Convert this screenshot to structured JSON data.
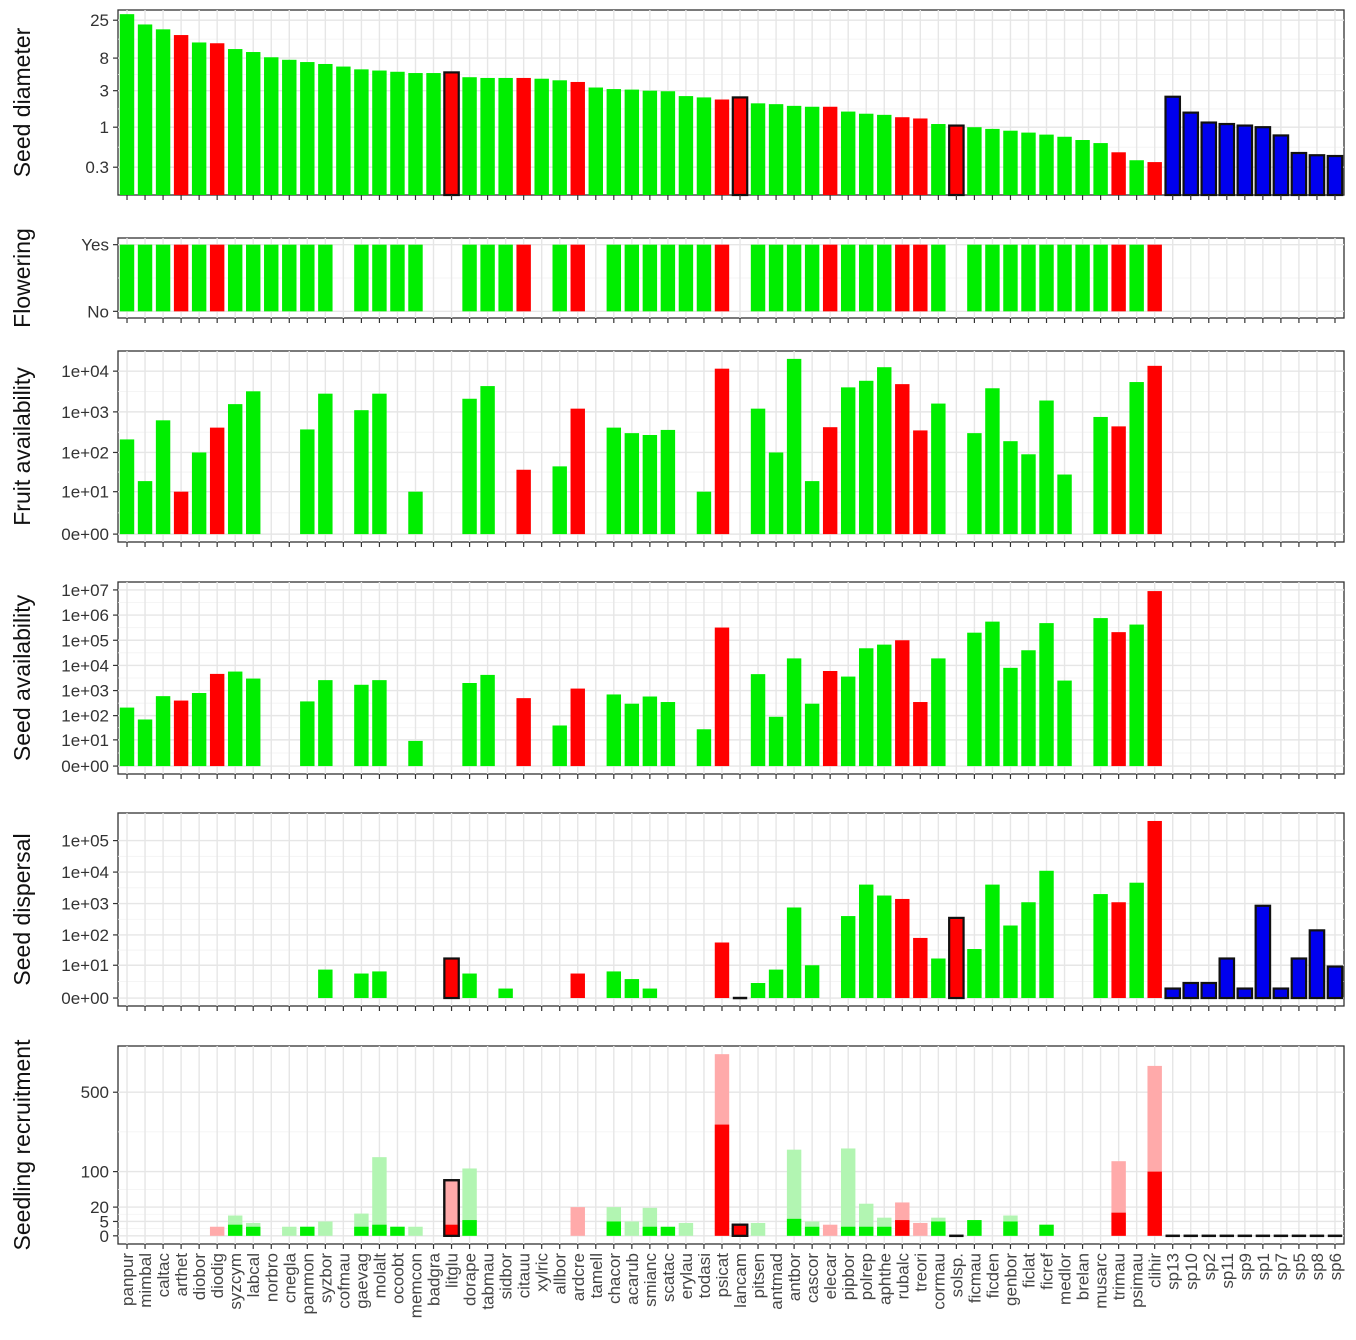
{
  "colors": {
    "green": "#00ee00",
    "red": "#ff0000",
    "blue": "#0000ee",
    "light_green": "#b2f5b2",
    "light_red": "#ffaaaa"
  },
  "chart_data": {
    "type": "bar",
    "species": [
      "panpur",
      "mimbal",
      "caltac",
      "arthet",
      "diobor",
      "diodig",
      "syzcym",
      "labcal",
      "norbro",
      "cnegla",
      "panmon",
      "syzbor",
      "cofmau",
      "gaevag",
      "molalt",
      "ocoobt",
      "memcon",
      "badgra",
      "litglu",
      "dorape",
      "tabmau",
      "sidbor",
      "citauu",
      "xylric",
      "allbor",
      "ardcre",
      "tamell",
      "chacor",
      "acarub",
      "smianc",
      "scatac",
      "erylau",
      "todasi",
      "psicat",
      "lancam",
      "pitsen",
      "antmad",
      "antbor",
      "cascor",
      "elecar",
      "pipbor",
      "polrep",
      "aphthe",
      "rubalc",
      "treori",
      "cormau",
      "solsp.",
      "ficmau",
      "ficden",
      "genbor",
      "ficlat",
      "ficref",
      "medlor",
      "brelan",
      "musarc",
      "trimau",
      "psimau",
      "clihir",
      "sp13",
      "sp10",
      "sp2",
      "sp11",
      "sp9",
      "sp1",
      "sp7",
      "sp5",
      "sp8",
      "sp6"
    ],
    "status": [
      "n",
      "n",
      "n",
      "e",
      "n",
      "e",
      "n",
      "n",
      "n",
      "n",
      "n",
      "n",
      "n",
      "n",
      "n",
      "n",
      "n",
      "n",
      "e",
      "n",
      "n",
      "n",
      "e",
      "n",
      "n",
      "e",
      "n",
      "n",
      "n",
      "n",
      "n",
      "n",
      "n",
      "e",
      "e",
      "n",
      "n",
      "n",
      "n",
      "e",
      "n",
      "n",
      "n",
      "e",
      "e",
      "n",
      "e",
      "n",
      "n",
      "n",
      "n",
      "n",
      "n",
      "n",
      "n",
      "e",
      "n",
      "e",
      "u",
      "u",
      "u",
      "u",
      "u",
      "u",
      "u",
      "u",
      "u",
      "u"
    ],
    "highlighted": [
      "litglu",
      "lancam",
      "solsp."
    ],
    "panels": [
      {
        "ylabel": "Seed diameter",
        "scale": "log",
        "ticks": [
          {
            "v": 0.3,
            "label": "0.3"
          },
          {
            "v": 1,
            "label": "1"
          },
          {
            "v": 3,
            "label": "3"
          },
          {
            "v": 8,
            "label": "8"
          },
          {
            "v": 25,
            "label": "25"
          }
        ],
        "values": [
          30,
          22,
          19,
          16,
          12.8,
          12.5,
          10.5,
          9.6,
          8.2,
          7.6,
          7.1,
          6.7,
          6.2,
          5.7,
          5.5,
          5.3,
          5.1,
          5.1,
          5.2,
          4.5,
          4.4,
          4.4,
          4.4,
          4.3,
          4.1,
          3.9,
          3.3,
          3.15,
          3.1,
          3.0,
          2.95,
          2.55,
          2.45,
          2.3,
          2.45,
          2.05,
          2.0,
          1.9,
          1.85,
          1.85,
          1.6,
          1.5,
          1.45,
          1.35,
          1.3,
          1.1,
          1.05,
          1.0,
          0.95,
          0.9,
          0.85,
          0.8,
          0.75,
          0.68,
          0.62,
          0.47,
          0.37,
          0.35,
          2.5,
          1.55,
          1.15,
          1.1,
          1.05,
          1.0,
          0.78,
          0.46,
          0.43,
          0.42
        ]
      },
      {
        "ylabel": "Flowering",
        "scale": "categorical",
        "ticks": [
          {
            "v": 0,
            "label": "No"
          },
          {
            "v": 1,
            "label": "Yes"
          }
        ],
        "values": [
          1,
          1,
          1,
          1,
          1,
          1,
          1,
          1,
          1,
          1,
          1,
          1,
          0,
          1,
          1,
          1,
          1,
          0,
          0,
          1,
          1,
          1,
          1,
          0,
          1,
          1,
          0,
          1,
          1,
          1,
          1,
          1,
          1,
          1,
          0,
          1,
          1,
          1,
          1,
          1,
          1,
          1,
          1,
          1,
          1,
          1,
          0,
          1,
          1,
          1,
          1,
          1,
          1,
          1,
          1,
          1,
          1,
          1,
          0,
          0,
          0,
          0,
          0,
          0,
          0,
          0,
          0,
          0
        ]
      },
      {
        "ylabel": "Fruit availability",
        "scale": "log1p",
        "ticks": [
          {
            "v": 0,
            "label": "0e+00"
          },
          {
            "v": 10,
            "label": "1e+01"
          },
          {
            "v": 100,
            "label": "1e+02"
          },
          {
            "v": 1000,
            "label": "1e+03"
          },
          {
            "v": 10000,
            "label": "1e+04"
          }
        ],
        "values": [
          210,
          19,
          620,
          10,
          100,
          410,
          1550,
          3200,
          0,
          0,
          370,
          2800,
          0,
          1100,
          2800,
          0,
          10,
          0,
          0,
          2100,
          4300,
          0,
          37,
          0,
          45,
          1200,
          0,
          410,
          300,
          270,
          360,
          0,
          10,
          11500,
          0,
          1200,
          100,
          20000,
          19,
          420,
          4000,
          5800,
          12500,
          4800,
          350,
          1600,
          0,
          300,
          3800,
          190,
          90,
          1900,
          28,
          0,
          750,
          440,
          5400,
          13500,
          0,
          0,
          0,
          0,
          0,
          0,
          0,
          0,
          0,
          0
        ]
      },
      {
        "ylabel": "Seed availability",
        "scale": "log1p",
        "ticks": [
          {
            "v": 0,
            "label": "0e+00"
          },
          {
            "v": 10,
            "label": "1e+01"
          },
          {
            "v": 100,
            "label": "1e+02"
          },
          {
            "v": 1000,
            "label": "1e+03"
          },
          {
            "v": 10000,
            "label": "1e+04"
          },
          {
            "v": 100000,
            "label": "1e+05"
          },
          {
            "v": 1000000,
            "label": "1e+06"
          },
          {
            "v": 10000000,
            "label": "1e+07"
          }
        ],
        "values": [
          210,
          70,
          600,
          400,
          800,
          4600,
          5700,
          3000,
          0,
          0,
          370,
          2600,
          0,
          1700,
          2600,
          0,
          9,
          0,
          0,
          2000,
          4200,
          0,
          500,
          0,
          40,
          1200,
          0,
          700,
          300,
          580,
          350,
          0,
          28,
          320000,
          0,
          4500,
          90,
          19000,
          300,
          6000,
          3600,
          48000,
          67000,
          100000,
          350,
          19000,
          0,
          200000,
          550000,
          8000,
          40000,
          480000,
          2500,
          0,
          760000,
          210000,
          420000,
          9000000,
          0,
          0,
          0,
          0,
          0,
          0,
          0,
          0,
          0,
          0
        ]
      },
      {
        "ylabel": "Seed dispersal",
        "scale": "log1p",
        "ticks": [
          {
            "v": 0,
            "label": "0e+00"
          },
          {
            "v": 10,
            "label": "1e+01"
          },
          {
            "v": 100,
            "label": "1e+02"
          },
          {
            "v": 1000,
            "label": "1e+03"
          },
          {
            "v": 10000,
            "label": "1e+04"
          },
          {
            "v": 100000,
            "label": "1e+05"
          }
        ],
        "values": [
          0,
          0,
          0,
          0,
          0,
          0,
          0,
          0,
          0,
          0,
          0,
          7,
          0,
          5,
          6,
          0,
          0,
          0,
          17,
          5,
          0,
          1,
          0,
          0,
          0,
          5,
          0,
          6,
          3,
          1,
          0,
          0,
          0,
          57,
          0,
          2,
          7,
          750,
          10,
          0,
          400,
          4000,
          1800,
          1400,
          80,
          17,
          350,
          35,
          4000,
          200,
          1100,
          11000,
          0,
          0,
          2000,
          1100,
          4600,
          420000,
          1,
          2,
          2,
          17,
          1,
          850,
          1,
          17,
          140,
          9
        ]
      },
      {
        "ylabel": "Seedling recruitment",
        "scale": "sqrt",
        "ticks": [
          {
            "v": 0,
            "label": "0"
          },
          {
            "v": 5,
            "label": "5"
          },
          {
            "v": 20,
            "label": "20"
          },
          {
            "v": 100,
            "label": "100"
          },
          {
            "v": 500,
            "label": "500"
          }
        ],
        "values": [
          0,
          0,
          0,
          0,
          0,
          0,
          3,
          2,
          0,
          0,
          2,
          0,
          0,
          2,
          3,
          2,
          0,
          0,
          3,
          6,
          0,
          0,
          0,
          0,
          0,
          0,
          0,
          5,
          0,
          2,
          2,
          0,
          0,
          300,
          3,
          0,
          0,
          7,
          2,
          0,
          2,
          2,
          2,
          6,
          0,
          5,
          0,
          6,
          0,
          5,
          0,
          3,
          0,
          0,
          0,
          13,
          0,
          100,
          0,
          0,
          0,
          0,
          0,
          0,
          0,
          0,
          0,
          0
        ],
        "values_2": [
          0,
          0,
          0,
          0,
          0,
          2,
          10,
          4,
          0,
          2,
          2,
          5,
          0,
          12,
          150,
          2,
          2,
          0,
          75,
          110,
          0,
          0,
          0,
          0,
          0,
          20,
          0,
          20,
          5,
          19,
          0,
          4,
          0,
          800,
          3,
          4,
          0,
          180,
          5,
          3,
          185,
          25,
          8,
          27,
          4,
          8,
          0,
          6,
          0,
          10,
          0,
          3,
          0,
          0,
          0,
          135,
          0,
          700,
          0,
          0,
          0,
          0,
          0,
          0,
          0,
          0,
          0,
          0
        ]
      }
    ]
  }
}
